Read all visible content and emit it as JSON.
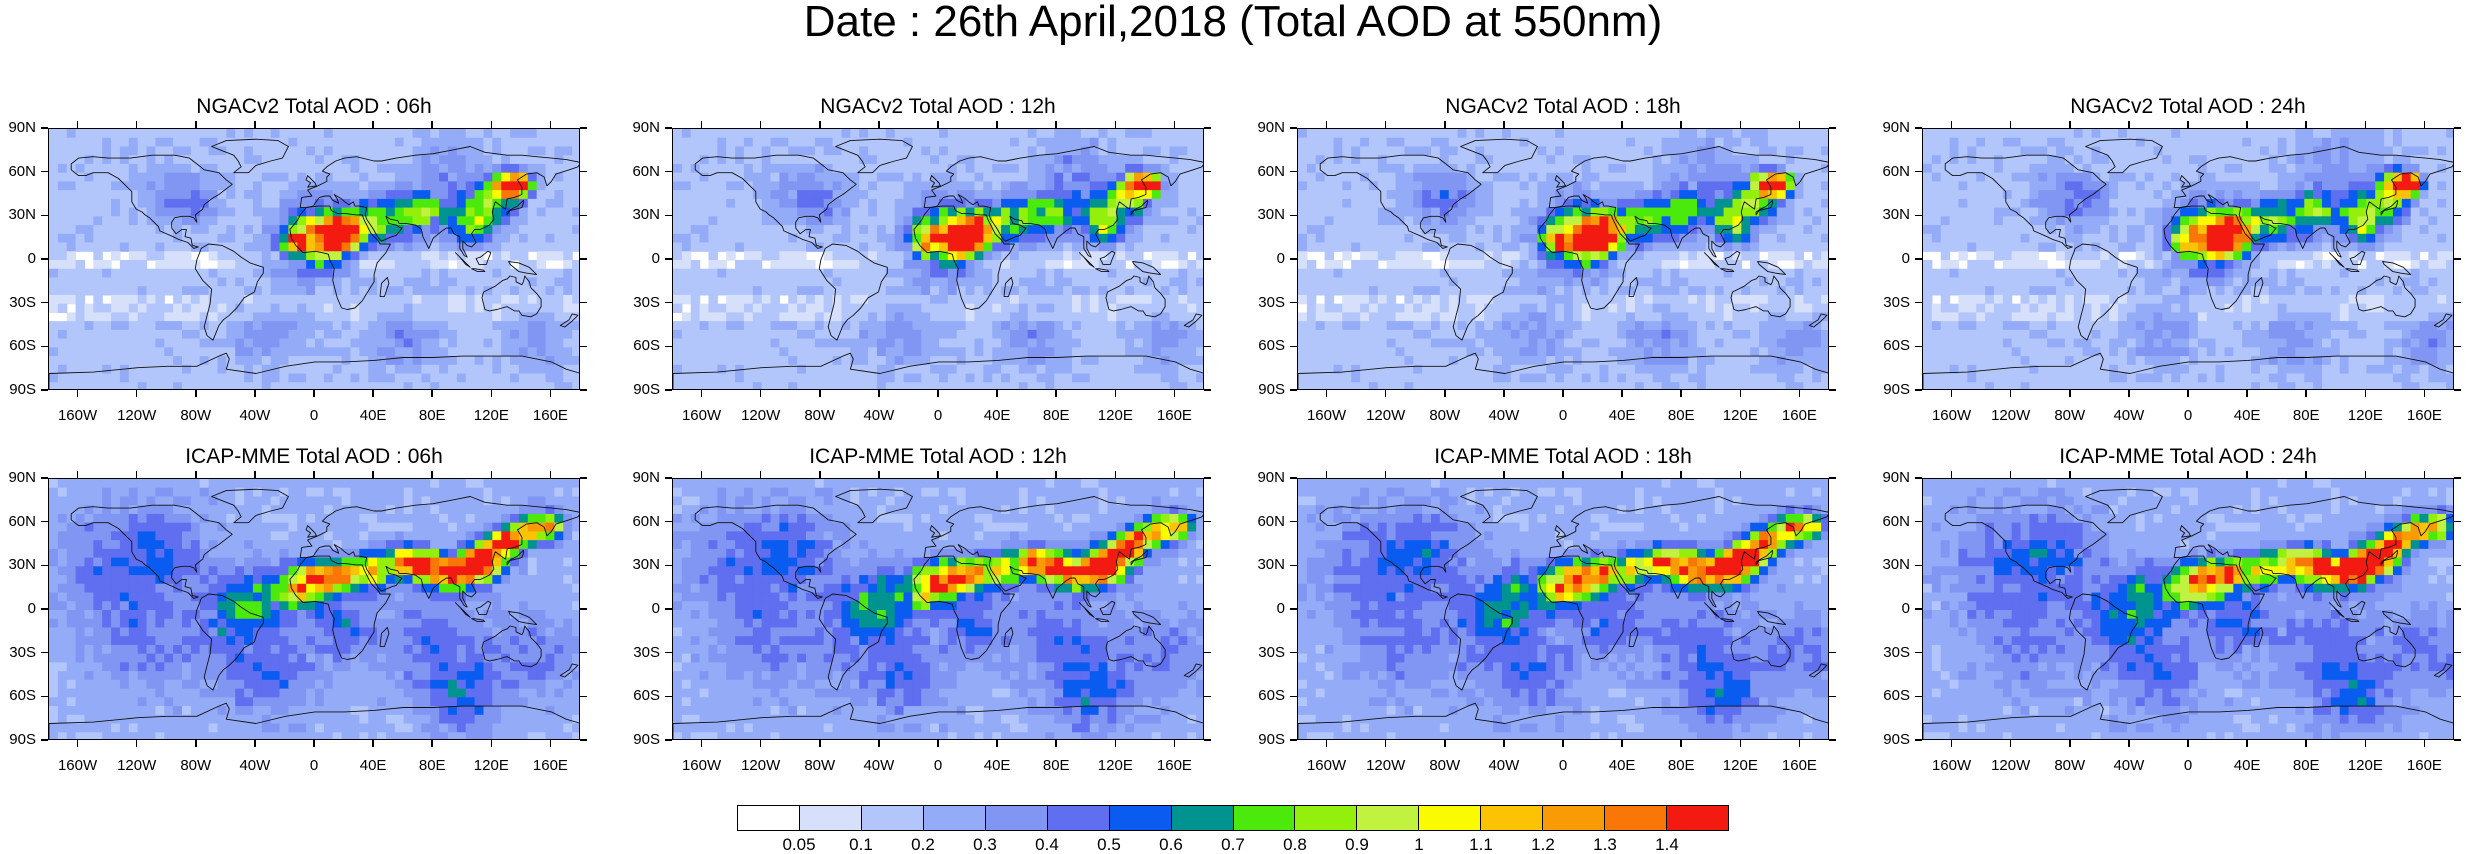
{
  "figure_title": "Date : 26th April,2018 (Total AOD at 550nm)",
  "panels": [
    {
      "title": "NGACv2 Total AOD : 06h",
      "model": "ngac",
      "hour": 6
    },
    {
      "title": "NGACv2 Total AOD : 12h",
      "model": "ngac",
      "hour": 12
    },
    {
      "title": "NGACv2 Total AOD : 18h",
      "model": "ngac",
      "hour": 18
    },
    {
      "title": "NGACv2 Total AOD : 24h",
      "model": "ngac",
      "hour": 24
    },
    {
      "title": "ICAP-MME Total AOD : 06h",
      "model": "icap",
      "hour": 6
    },
    {
      "title": "ICAP-MME Total AOD : 12h",
      "model": "icap",
      "hour": 12
    },
    {
      "title": "ICAP-MME Total AOD : 18h",
      "model": "icap",
      "hour": 18
    },
    {
      "title": "ICAP-MME Total AOD : 24h",
      "model": "icap",
      "hour": 24
    }
  ],
  "lat_labels": [
    "90N",
    "60N",
    "30N",
    "0",
    "30S",
    "60S",
    "90S"
  ],
  "lon_labels": [
    "160W",
    "120W",
    "80W",
    "40W",
    "0",
    "40E",
    "80E",
    "120E",
    "160E"
  ],
  "colorbar": {
    "labels": [
      "0.05",
      "0.1",
      "0.2",
      "0.3",
      "0.4",
      "0.5",
      "0.6",
      "0.7",
      "0.8",
      "0.9",
      "1",
      "1.1",
      "1.2",
      "1.3",
      "1.4"
    ],
    "colors": [
      "#ffffff",
      "#d6e0fb",
      "#b3c6fb",
      "#94acf7",
      "#8196f3",
      "#5f6ff0",
      "#0a5cf0",
      "#00938f",
      "#4bea0c",
      "#92f00c",
      "#c1f23f",
      "#fbfb00",
      "#fbc304",
      "#f99b05",
      "#f87707",
      "#f31a11"
    ]
  }
}
